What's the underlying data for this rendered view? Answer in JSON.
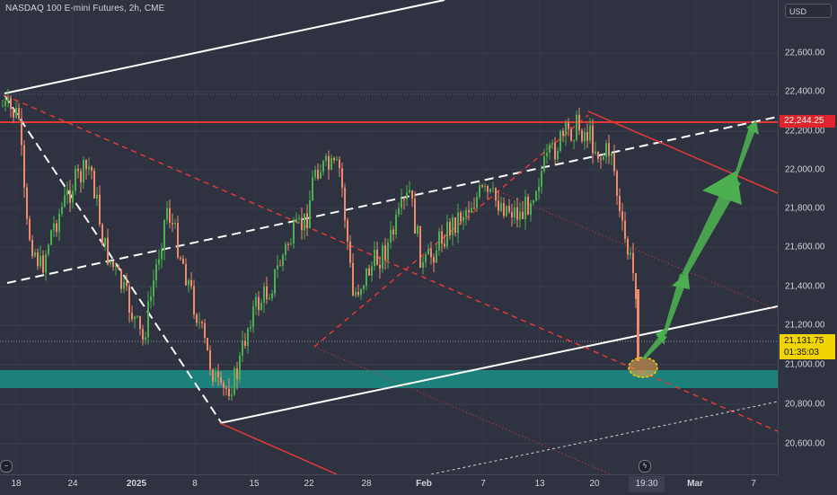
{
  "header": {
    "title": "NASDAQ 100 E-mini Futures, 2h, CME",
    "currency": "USD"
  },
  "price_axis": {
    "ticks": [
      "22,600.00",
      "22,400.00",
      "22,200.00",
      "22,000.00",
      "21,800.00",
      "21,600.00",
      "21,400.00",
      "21,200.00",
      "21,000.00",
      "20,800.00",
      "20,600.00"
    ],
    "price_tag": "22,244.25",
    "current_price": "21,131.75",
    "countdown": "01:35:03"
  },
  "time_axis": {
    "ticks": [
      "18",
      "24",
      "2025",
      "8",
      "15",
      "22",
      "28",
      "Feb",
      "7",
      "13",
      "20",
      "Mar",
      "7"
    ],
    "cursor_time": "19:30"
  },
  "colors": {
    "bull": "#4caf50",
    "bear": "#ef8a6a",
    "red_line": "#e53935",
    "zone": "#1a8f86",
    "arrow": "#4caf50"
  },
  "icons": {
    "bottom_left": "minus-circle-icon",
    "bottom_marker": "lightning-icon"
  }
}
